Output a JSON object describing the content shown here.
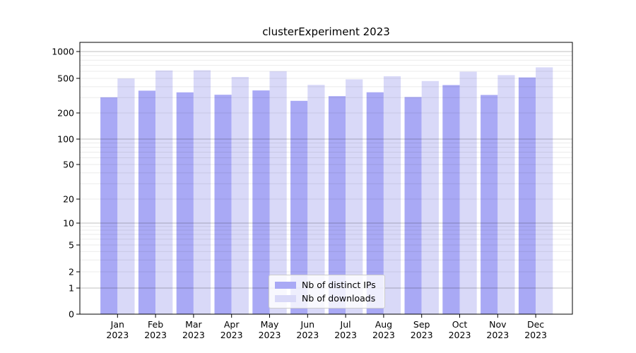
{
  "figure": {
    "title": "clusterExperiment 2023"
  },
  "legend": {
    "items": [
      {
        "label": "Nb of distinct IPs",
        "color": "#a9a9f5"
      },
      {
        "label": "Nb of downloads",
        "color": "#d9d9f8"
      }
    ]
  },
  "chart_data": {
    "type": "bar",
    "title": "clusterExperiment 2023",
    "categories": [
      "Jan",
      "Feb",
      "Mar",
      "Apr",
      "May",
      "Jun",
      "Jul",
      "Aug",
      "Sep",
      "Oct",
      "Nov",
      "Dec"
    ],
    "category_year": "2023",
    "series": [
      {
        "name": "Nb of distinct IPs",
        "color": "#a9a9f5",
        "values": [
          303,
          361,
          345,
          324,
          363,
          276,
          312,
          346,
          305,
          419,
          322,
          512
        ]
      },
      {
        "name": "Nb of downloads",
        "color": "#d9d9f8",
        "values": [
          498,
          613,
          617,
          519,
          601,
          421,
          487,
          528,
          466,
          595,
          544,
          664
        ]
      }
    ],
    "xlabel": "",
    "ylabel": "",
    "yscale": "symlog",
    "yticks": [
      0,
      1,
      2,
      5,
      10,
      20,
      50,
      100,
      200,
      500,
      1000
    ],
    "ylim": [
      0,
      1300
    ],
    "grid": "horizontal major (powers of 10, darker) and minor (faint), drawn above bars",
    "legend_position": "lower center"
  }
}
